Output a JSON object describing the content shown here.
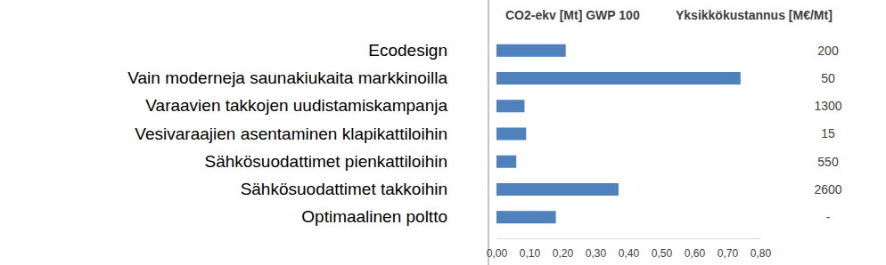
{
  "chart_data": {
    "type": "bar",
    "orientation": "horizontal",
    "title": "CO2-ekv [Mt] GWP 100",
    "unit_cost_title": "Yksikkökustannus [M€/Mt]",
    "categories": [
      "Ecodesign",
      "Vain moderneja saunakiukaita markkinoilla",
      "Varaavien takkojen uudistamiskampanja",
      "Vesivaraajien asentaminen klapikattiloihin",
      "Sähkösuodattimet pienkattiloihin",
      "Sähkösuodattimet takkoihin",
      "Optimaalinen poltto"
    ],
    "values": [
      0.21,
      0.74,
      0.085,
      0.09,
      0.06,
      0.37,
      0.18
    ],
    "unit_costs": [
      200,
      50,
      1300,
      15,
      550,
      2600,
      "-"
    ],
    "color": "#4f81bd",
    "xlim": [
      0,
      0.8
    ],
    "xticks": [
      {
        "value": 0,
        "label": "0,00"
      },
      {
        "value": 0.1,
        "label": "0,10"
      },
      {
        "value": 0.2,
        "label": "0,20"
      },
      {
        "value": 0.3,
        "label": "0,30"
      },
      {
        "value": 0.4,
        "label": "0,40"
      },
      {
        "value": 0.5,
        "label": "0,50"
      },
      {
        "value": 0.6,
        "label": "0,60"
      },
      {
        "value": 0.7,
        "label": "0,70"
      },
      {
        "value": 0.8,
        "label": "0,80"
      }
    ],
    "grid": false
  }
}
